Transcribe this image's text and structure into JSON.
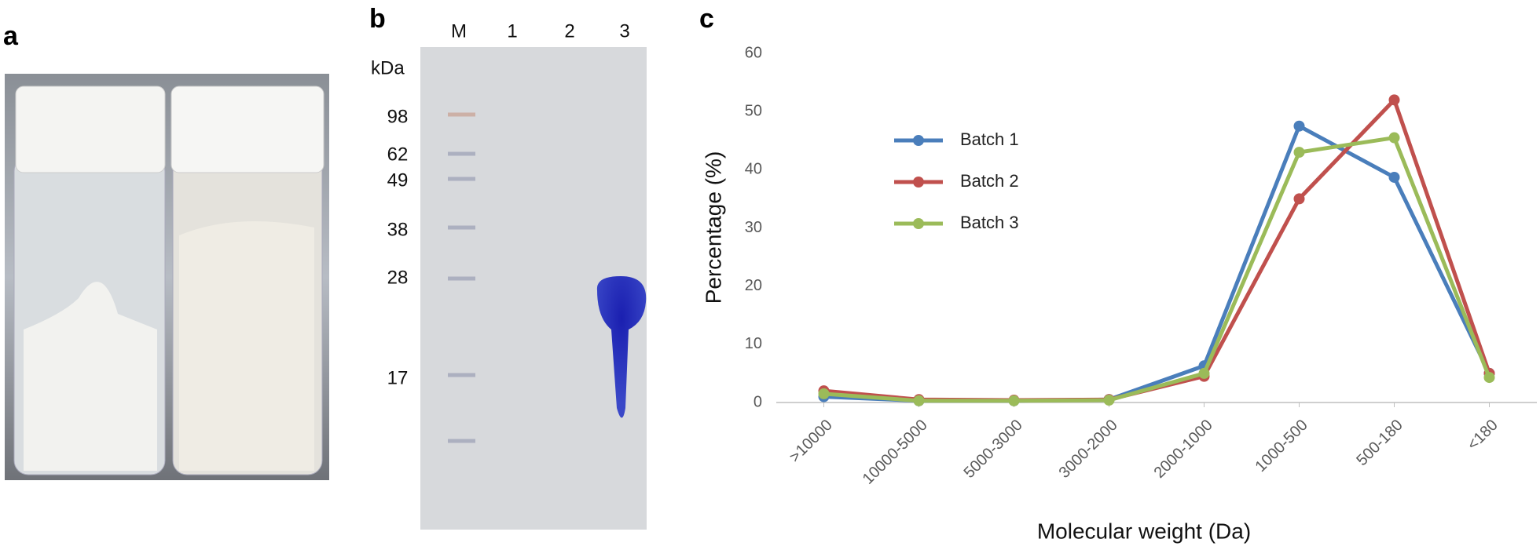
{
  "panels": {
    "a": {
      "label": "a"
    },
    "b": {
      "label": "b",
      "lanes": [
        "M",
        "1",
        "2",
        "3"
      ],
      "unit": "kDa",
      "markers": [
        98,
        62,
        49,
        38,
        28,
        17
      ]
    },
    "c": {
      "label": "c"
    }
  },
  "chart_data": {
    "type": "line",
    "x_label": "Molecular weight (Da)",
    "y_label": "Percentage (%)",
    "categories": [
      ">10000",
      "10000-5000",
      "5000-3000",
      "3000-2000",
      "2000-1000",
      "1000-500",
      "500-180",
      "<180"
    ],
    "series": [
      {
        "name": "Batch 1",
        "color": "#4a7ebb",
        "values": [
          1,
          0.3,
          0.3,
          0.5,
          6.3,
          47.5,
          38.7,
          5
        ]
      },
      {
        "name": "Batch 2",
        "color": "#c0504d",
        "values": [
          2,
          0.5,
          0.4,
          0.5,
          4.5,
          35,
          52,
          5
        ]
      },
      {
        "name": "Batch 3",
        "color": "#9bbb59",
        "values": [
          1.5,
          0.3,
          0.3,
          0.4,
          5,
          43,
          45.5,
          4.3
        ]
      }
    ],
    "ylim": [
      0,
      60
    ],
    "yticks": [
      0,
      10,
      20,
      30,
      40,
      50,
      60
    ],
    "grid": false,
    "legend": "upper-left"
  }
}
